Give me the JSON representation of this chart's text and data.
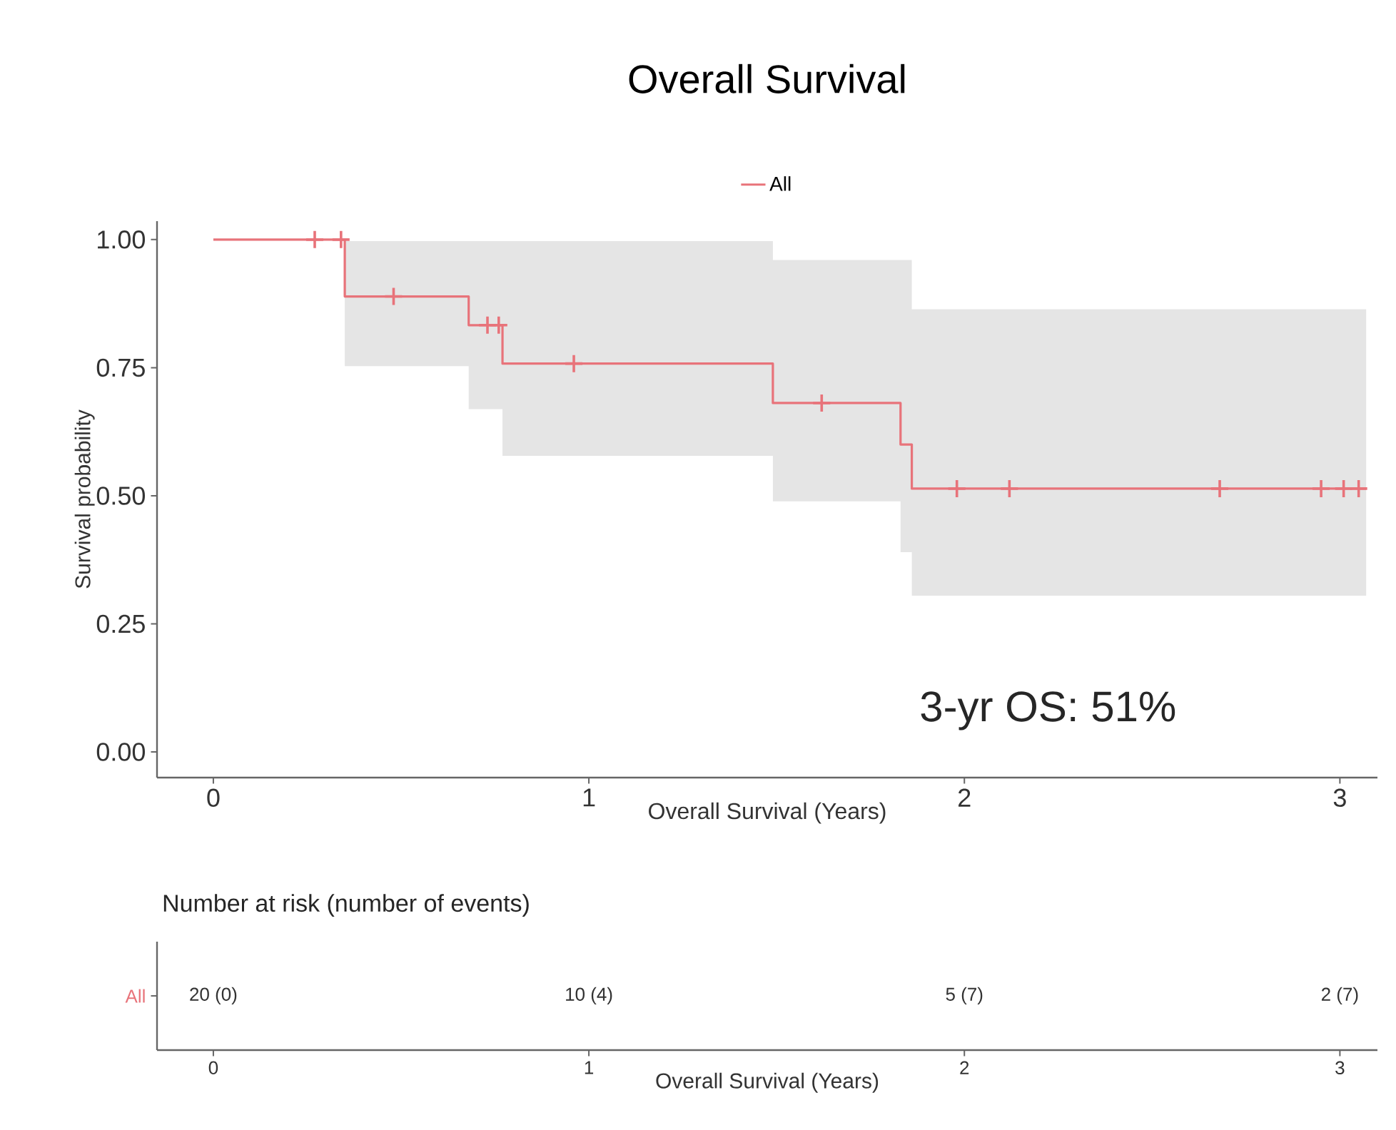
{
  "chart_data": [
    {
      "type": "step",
      "title": "Overall Survival",
      "xlabel": "Overall Survival (Years)",
      "ylabel": "Survival probability",
      "xlim": [
        -0.15,
        3.1
      ],
      "ylim": [
        -0.05,
        1.036
      ],
      "xticks": [
        0,
        1,
        2,
        3
      ],
      "yticks": [
        {
          "value": 0,
          "label": "0.00"
        },
        {
          "value": 0.25,
          "label": "0.25"
        },
        {
          "value": 0.5,
          "label": "0.50"
        },
        {
          "value": 0.75,
          "label": "0.75"
        },
        {
          "value": 1,
          "label": "1.00"
        }
      ],
      "legend": "top",
      "series": [
        {
          "name": "All",
          "type": "step",
          "color": "#e8737a",
          "x": [
            0,
            0.35,
            0.68,
            0.77,
            1.49,
            1.83,
            1.86,
            3.07
          ],
          "values": [
            1,
            0.889,
            0.833,
            0.758,
            0.681,
            0.6,
            0.514,
            0.514
          ],
          "lower": [
            1,
            0.753,
            0.669,
            0.578,
            0.489,
            0.39,
            0.305,
            0.305
          ],
          "upper": [
            1,
            0.997,
            0.997,
            0.997,
            0.96,
            0.96,
            0.864,
            0.864
          ]
        },
        {
          "type": "scatter",
          "marker": "cross",
          "color": "#e8737a",
          "x": [
            0.27,
            0.34,
            0.48,
            0.73,
            0.76,
            0.96,
            1.62,
            1.98,
            2.12,
            2.68,
            2.95,
            3.01,
            3.05
          ],
          "values": [
            1,
            1,
            0.889,
            0.833,
            0.833,
            0.758,
            0.681,
            0.514,
            0.514,
            0.514,
            0.514,
            0.514,
            0.514
          ]
        }
      ],
      "annotations": [
        "3-yr OS: 51%"
      ]
    },
    {
      "type": "heatmap",
      "title": "Number at risk (number of events)",
      "xlabel": "Overall Survival (Years)",
      "categories": [
        "0",
        "1",
        "2",
        "3"
      ],
      "y_categories": [
        "All"
      ],
      "cells": [
        [
          null,
          null,
          null,
          null
        ]
      ],
      "cell_labels": [
        [
          "20 (0)",
          "10 (4)",
          "5 (7)",
          "2 (7)"
        ]
      ]
    }
  ]
}
